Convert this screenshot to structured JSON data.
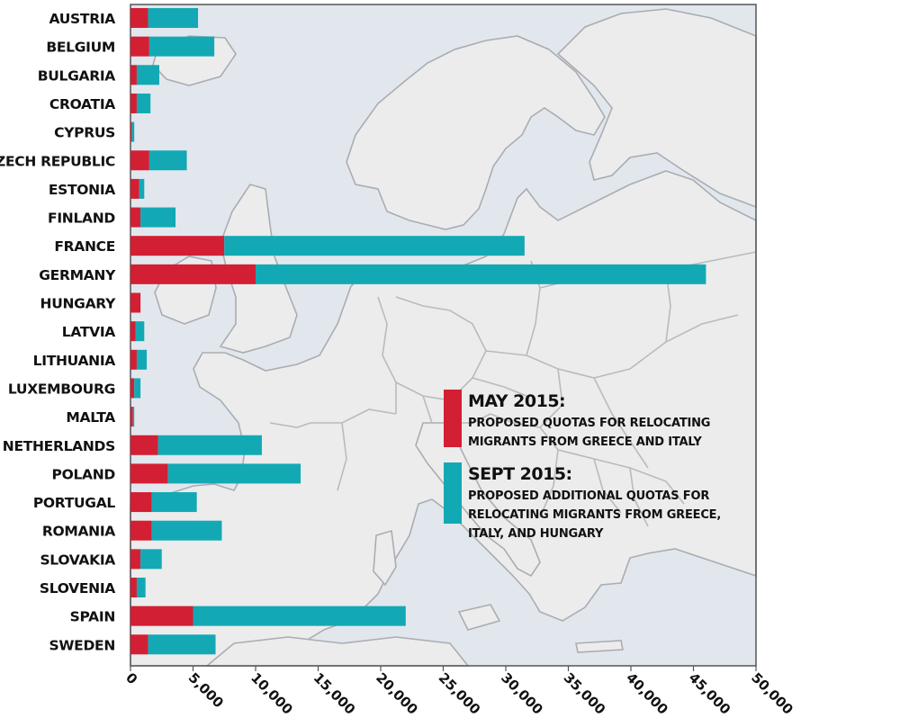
{
  "colors": {
    "may": "#d21f34",
    "sept": "#12a9b5",
    "sea": "#e2e7ee",
    "land": "#ececec"
  },
  "chart_data": {
    "type": "bar",
    "orientation": "horizontal",
    "stacked": true,
    "title": "",
    "xlabel": "",
    "ylabel": "",
    "xlim": [
      0,
      50000
    ],
    "x_ticks": [
      "0",
      "5,000",
      "10,000",
      "15,000",
      "20,000",
      "25,000",
      "30,000",
      "35,000",
      "40,000",
      "45,000",
      "50,000"
    ],
    "categories": [
      "AUSTRIA",
      "BELGIUM",
      "BULGARIA",
      "CROATIA",
      "CYPRUS",
      "CZECH REPUBLIC",
      "ESTONIA",
      "FINLAND",
      "FRANCE",
      "GERMANY",
      "HUNGARY",
      "LATVIA",
      "LITHUANIA",
      "LUXEMBOURG",
      "MALTA",
      "NETHERLANDS",
      "POLAND",
      "PORTUGAL",
      "ROMANIA",
      "SLOVAKIA",
      "SLOVENIA",
      "SPAIN",
      "SWEDEN"
    ],
    "series": [
      {
        "name": "MAY 2015:",
        "description": "PROPOSED QUOTAS FOR RELOCATING MIGRANTS FROM GREECE AND ITALY",
        "values": [
          1400,
          1500,
          500,
          500,
          100,
          1500,
          700,
          800,
          7500,
          10000,
          800,
          400,
          500,
          300,
          200,
          2200,
          3000,
          1700,
          1700,
          800,
          500,
          5000,
          1400
        ]
      },
      {
        "name": "SEPT 2015:",
        "description": "PROPOSED ADDITIONAL QUOTAS FOR RELOCATING MIGRANTS FROM GREECE, ITALY, AND HUNGARY",
        "values": [
          4000,
          5200,
          1800,
          1100,
          200,
          3000,
          400,
          2800,
          24000,
          36000,
          0,
          700,
          800,
          500,
          100,
          8300,
          10600,
          3600,
          5600,
          1700,
          700,
          17000,
          5400
        ]
      }
    ],
    "legend": "right-center"
  }
}
